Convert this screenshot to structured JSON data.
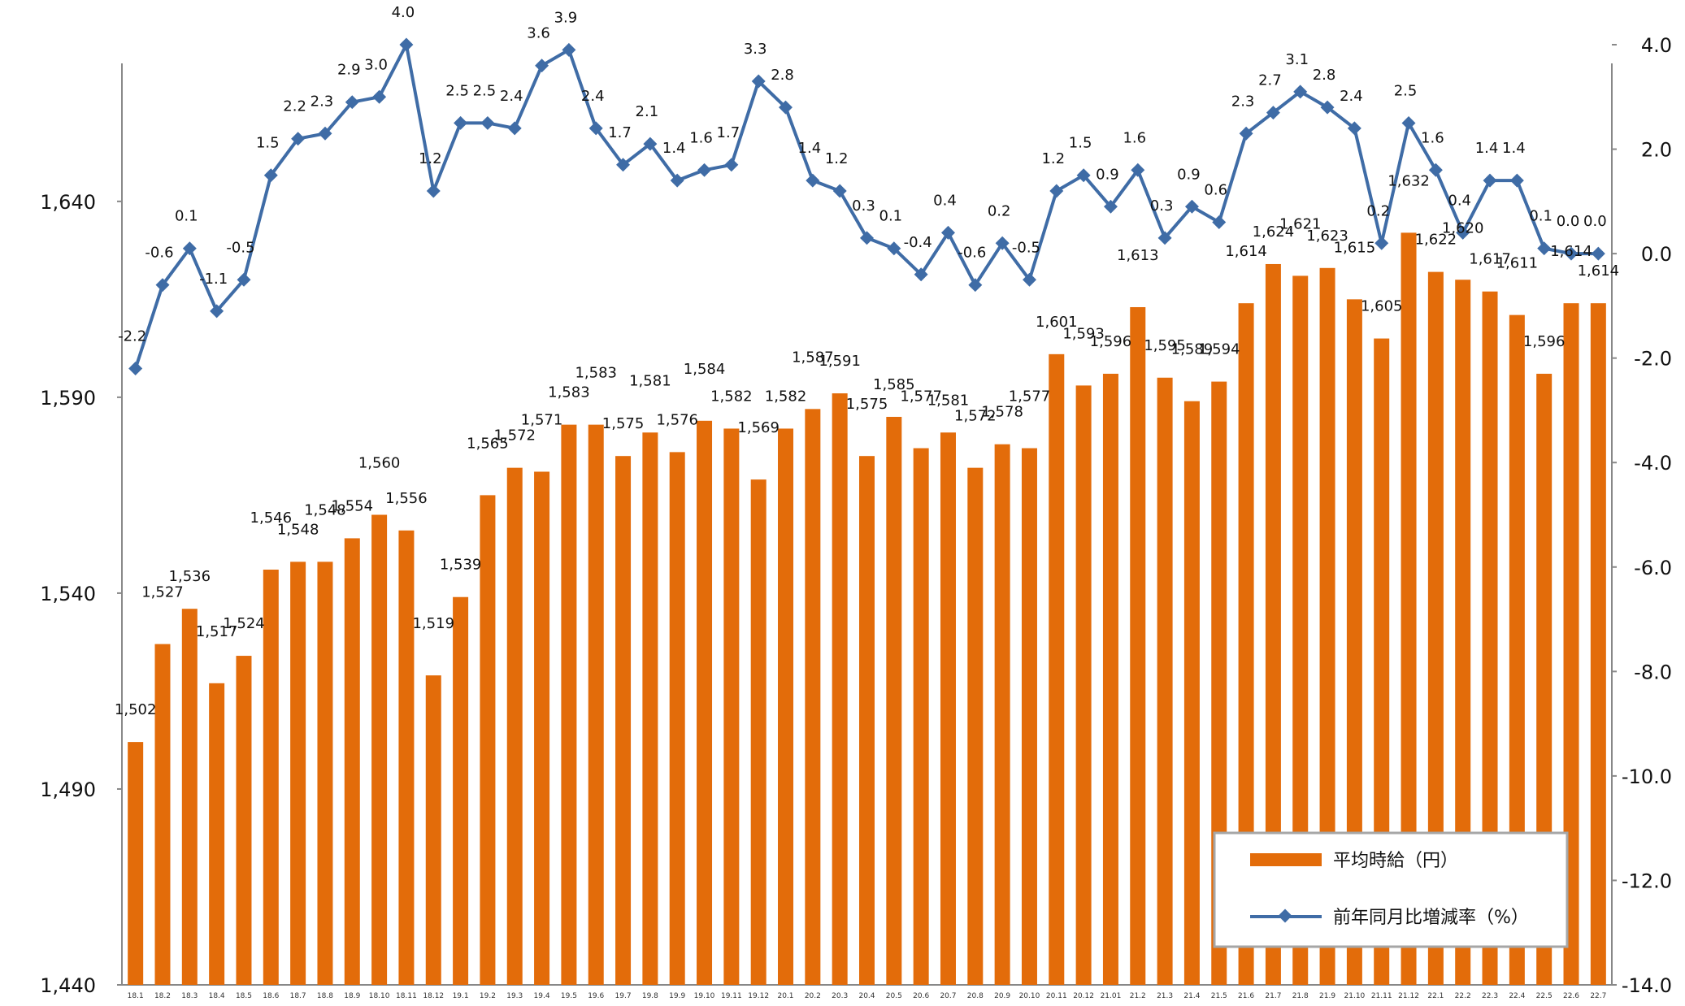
{
  "chart_data": {
    "type": "bar",
    "categories": [
      "18.1",
      "18.2",
      "18.3",
      "18.4",
      "18.5",
      "18.6",
      "18.7",
      "18.8",
      "18.9",
      "18.10",
      "18.11",
      "18.12",
      "19.1",
      "19.2",
      "19.3",
      "19.4",
      "19.5",
      "19.6",
      "19.7",
      "19.8",
      "19.9",
      "19.10",
      "19.11",
      "19.12",
      "20.1",
      "20.2",
      "20.3",
      "20.4",
      "20.5",
      "20.6",
      "20.7",
      "20.8",
      "20.9",
      "20.10",
      "20.11",
      "20.12",
      "21.01",
      "21.2",
      "21.3",
      "21.4",
      "21.5",
      "21.6",
      "21.7",
      "21.8",
      "21.9",
      "21.10",
      "21.11",
      "21.12",
      "22.1",
      "22.2",
      "22.3",
      "22.4",
      "22.5",
      "22.6",
      "22.7"
    ],
    "series": [
      {
        "name": "平均時給（円）",
        "type": "bar",
        "axis": "left",
        "color": "#E36C0A",
        "values": [
          1502,
          1527,
          1536,
          1517,
          1524,
          1546,
          1548,
          1548,
          1554,
          1560,
          1556,
          1519,
          1539,
          1565,
          1572,
          1571,
          1583,
          1583,
          1575,
          1581,
          1576,
          1584,
          1582,
          1569,
          1582,
          1587,
          1591,
          1575,
          1585,
          1577,
          1581,
          1572,
          1578,
          1577,
          1601,
          1593,
          1596,
          1613,
          1595,
          1589,
          1594,
          1614,
          1624,
          1621,
          1623,
          1615,
          1605,
          1632,
          1622,
          1620,
          1617,
          1611,
          1596,
          1614,
          1614
        ],
        "labels": [
          "1,502",
          "1,527",
          "1,536",
          "1,517",
          "1,524",
          "1,546",
          "1,548",
          "1,548",
          "1,554",
          "1,560",
          "1,556",
          "1,519",
          "1,539",
          "1,565",
          "1,572",
          "1,571",
          "1,583",
          "1,583",
          "1,575",
          "1,581",
          "1,576",
          "1,584",
          "1,582",
          "1,569",
          "1,582",
          "1,587",
          "1,591",
          "1,575",
          "1,585",
          "1,577",
          "1,581",
          "1,572",
          "1,578",
          "1,577",
          "1,601",
          "1,593",
          "1,596",
          "1,613",
          "1,595",
          "1,589",
          "1,594",
          "1,614",
          "1,624",
          "1,621",
          "1,623",
          "1,615",
          "1,605",
          "1,632",
          "1,622",
          "1,620",
          "1,617",
          "1,611",
          "1,596",
          "1,614",
          "1,614"
        ]
      },
      {
        "name": "前年同月比増減率（%）",
        "type": "line",
        "axis": "right",
        "color": "#3F6CA6",
        "values": [
          -2.2,
          -0.6,
          0.1,
          -1.1,
          -0.5,
          1.5,
          2.2,
          2.3,
          2.9,
          3.0,
          4.0,
          1.2,
          2.5,
          2.5,
          2.4,
          3.6,
          3.9,
          2.4,
          1.7,
          2.1,
          1.4,
          1.6,
          1.7,
          3.3,
          2.8,
          1.4,
          1.2,
          0.3,
          0.1,
          -0.4,
          0.4,
          -0.6,
          0.2,
          -0.5,
          1.2,
          1.5,
          0.9,
          1.6,
          0.3,
          0.9,
          0.6,
          2.3,
          2.7,
          3.1,
          2.8,
          2.4,
          0.2,
          2.5,
          1.6,
          0.4,
          1.4,
          1.4,
          0.1,
          0.0,
          0.0
        ],
        "labels": [
          "-2.2",
          "-0.6",
          "0.1",
          "-1.1",
          "-0.5",
          "1.5",
          "2.2",
          "2.3",
          "2.9",
          "3.0",
          "4.0",
          "1.2",
          "2.5",
          "2.5",
          "2.4",
          "3.6",
          "3.9",
          "2.4",
          "1.7",
          "2.1",
          "1.4",
          "1.6",
          "1.7",
          "3.3",
          "2.8",
          "1.4",
          "1.2",
          "0.3",
          "0.1",
          "-0.4",
          "0.4",
          "-0.6",
          "0.2",
          "-0.5",
          "1.2",
          "1.5",
          "0.9",
          "1.6",
          "0.3",
          "0.9",
          "0.6",
          "2.3",
          "2.7",
          "3.1",
          "2.8",
          "2.4",
          "0.2",
          "2.5",
          "1.6",
          "0.4",
          "1.4",
          "1.4",
          "0.1",
          "0.0",
          "0.0"
        ],
        "negative_label_color": "#FF0000"
      }
    ],
    "left_axis": {
      "ylim": [
        1440,
        1680
      ],
      "ticks": [
        "1,440",
        "1,490",
        "1,540",
        "1,590",
        "1,640"
      ]
    },
    "right_axis": {
      "ylim": [
        -14.0,
        4.0
      ],
      "ticks": [
        "4.0",
        "2.0",
        "0.0",
        "-2.0",
        "-4.0",
        "-6.0",
        "-8.0",
        "-10.0",
        "-12.0",
        "-14.0"
      ]
    },
    "grid": false,
    "legend_position": "bottom-right"
  },
  "legend": {
    "bar_label": "平均時給（円）",
    "line_label": "前年同月比増減率（%）"
  }
}
